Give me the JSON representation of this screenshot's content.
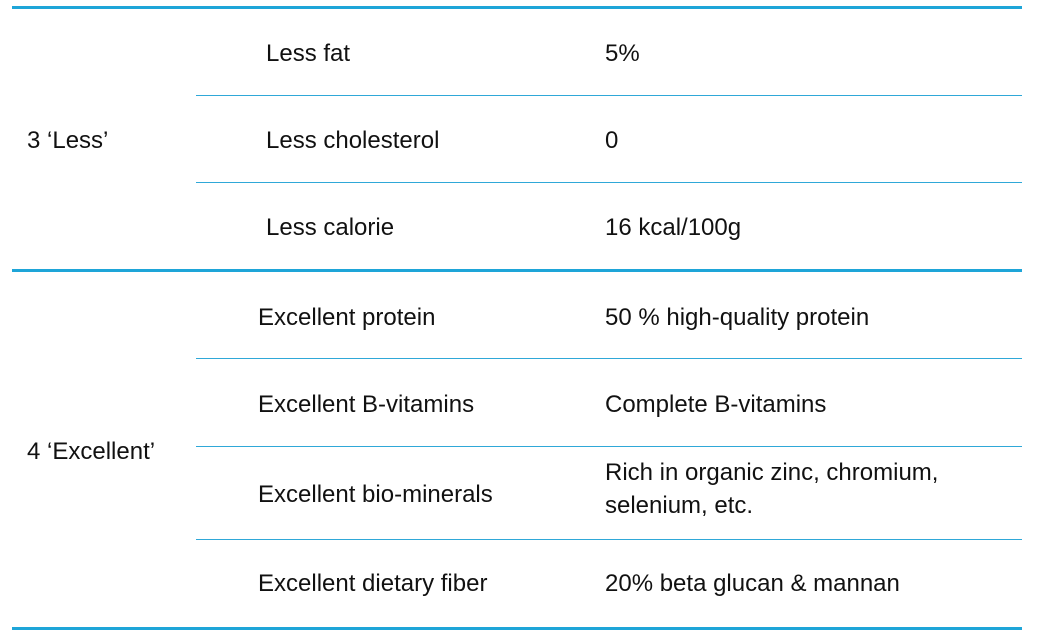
{
  "accent_color": "#1ea5d8",
  "groups": [
    {
      "label": "3 ‘Less’",
      "rows": [
        {
          "item": "Less fat",
          "value": "5%"
        },
        {
          "item": "Less cholesterol",
          "value": "0"
        },
        {
          "item": "Less calorie",
          "value": "16 kcal/100g"
        }
      ]
    },
    {
      "label": "4 ‘Excellent’",
      "rows": [
        {
          "item": "Excellent protein",
          "value": "50 % high-quality protein"
        },
        {
          "item": "Excellent B-vitamins",
          "value": "Complete B-vitamins"
        },
        {
          "item": "Excellent bio-minerals",
          "value": "Rich in organic zinc, chromium,",
          "value_line2": "selenium, etc."
        },
        {
          "item": "Excellent dietary fiber",
          "value": "20% beta glucan & mannan"
        }
      ]
    }
  ]
}
